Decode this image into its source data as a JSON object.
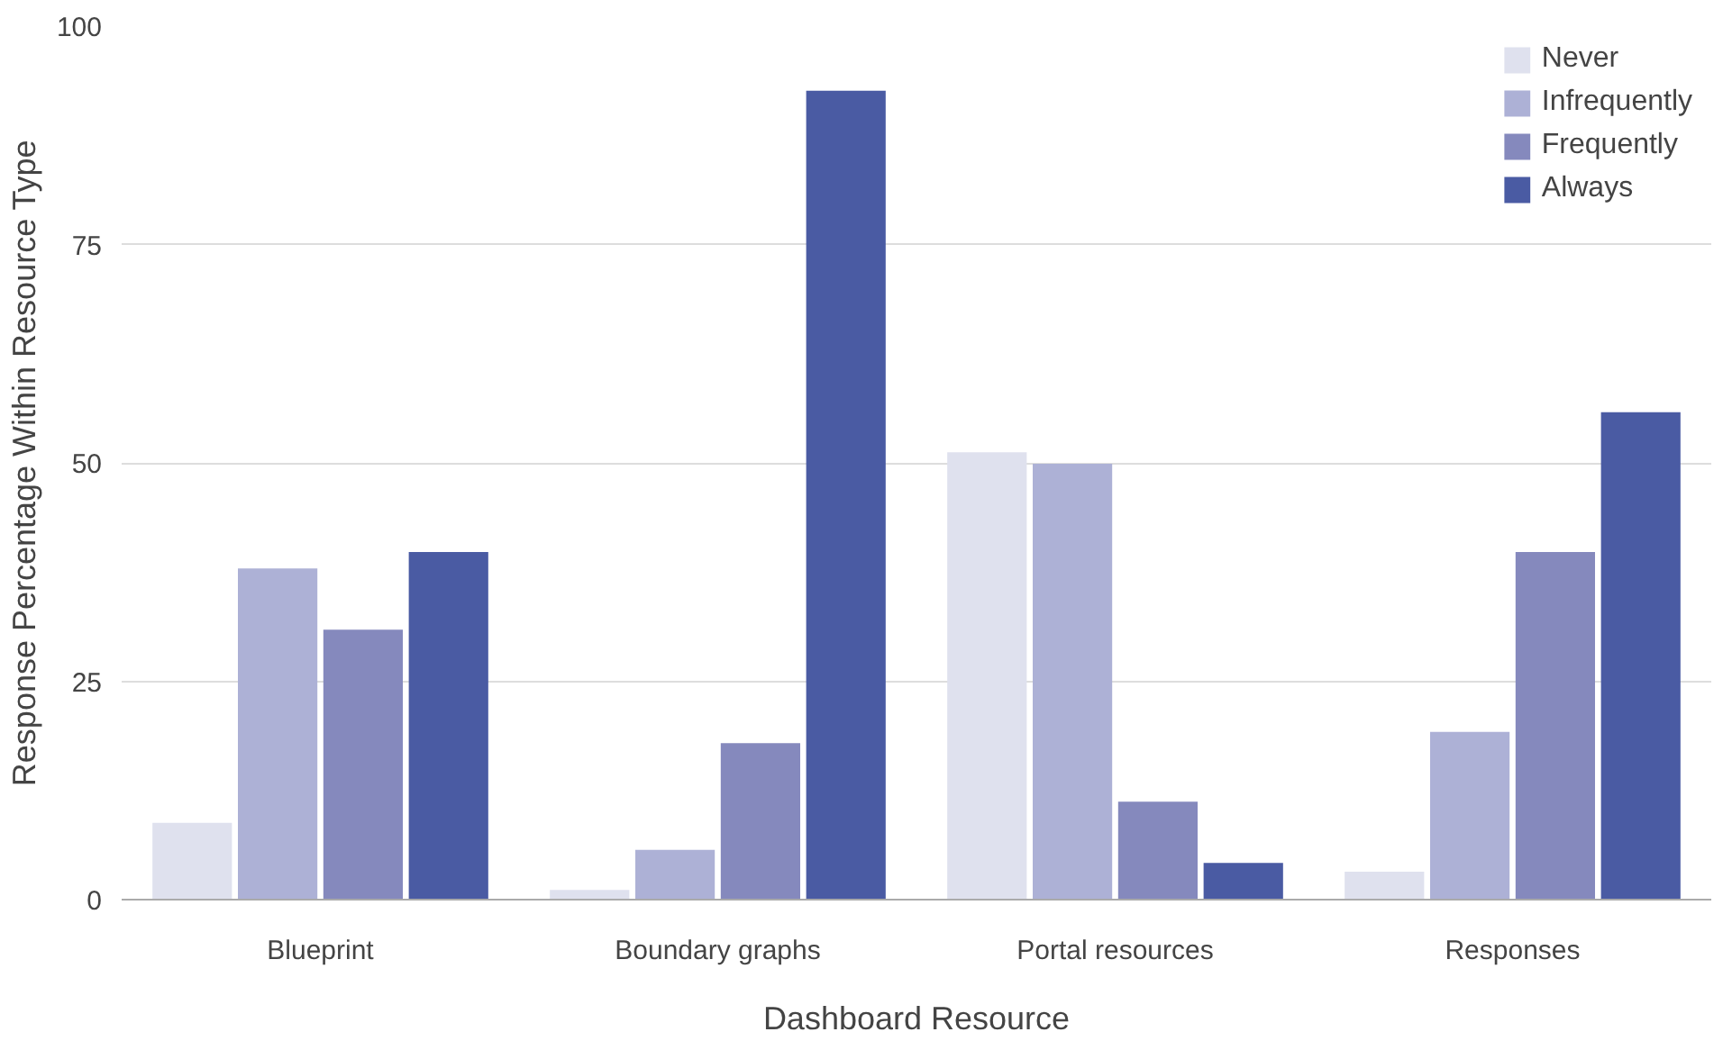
{
  "chart_data": {
    "type": "bar",
    "xlabel": "Dashboard Resource",
    "ylabel": "Response Percentage Within Resource Type",
    "categories": [
      "Blueprint",
      "Boundary graphs",
      "Portal resources",
      "Responses"
    ],
    "series": [
      {
        "name": "Never",
        "color": "#dfe1ee",
        "values": [
          8.8,
          1.1,
          51.2,
          3.2
        ]
      },
      {
        "name": "Infrequently",
        "color": "#adb1d6",
        "values": [
          37.9,
          5.7,
          49.9,
          19.2
        ]
      },
      {
        "name": "Frequently",
        "color": "#8589bd",
        "values": [
          30.9,
          17.9,
          11.2,
          39.8
        ]
      },
      {
        "name": "Always",
        "color": "#4a5ba3",
        "values": [
          39.8,
          92.6,
          4.2,
          55.8
        ]
      }
    ],
    "ylim": [
      0,
      100
    ],
    "yticks": [
      0,
      25,
      50,
      75,
      100
    ],
    "grid": "y",
    "legend": "top right"
  }
}
